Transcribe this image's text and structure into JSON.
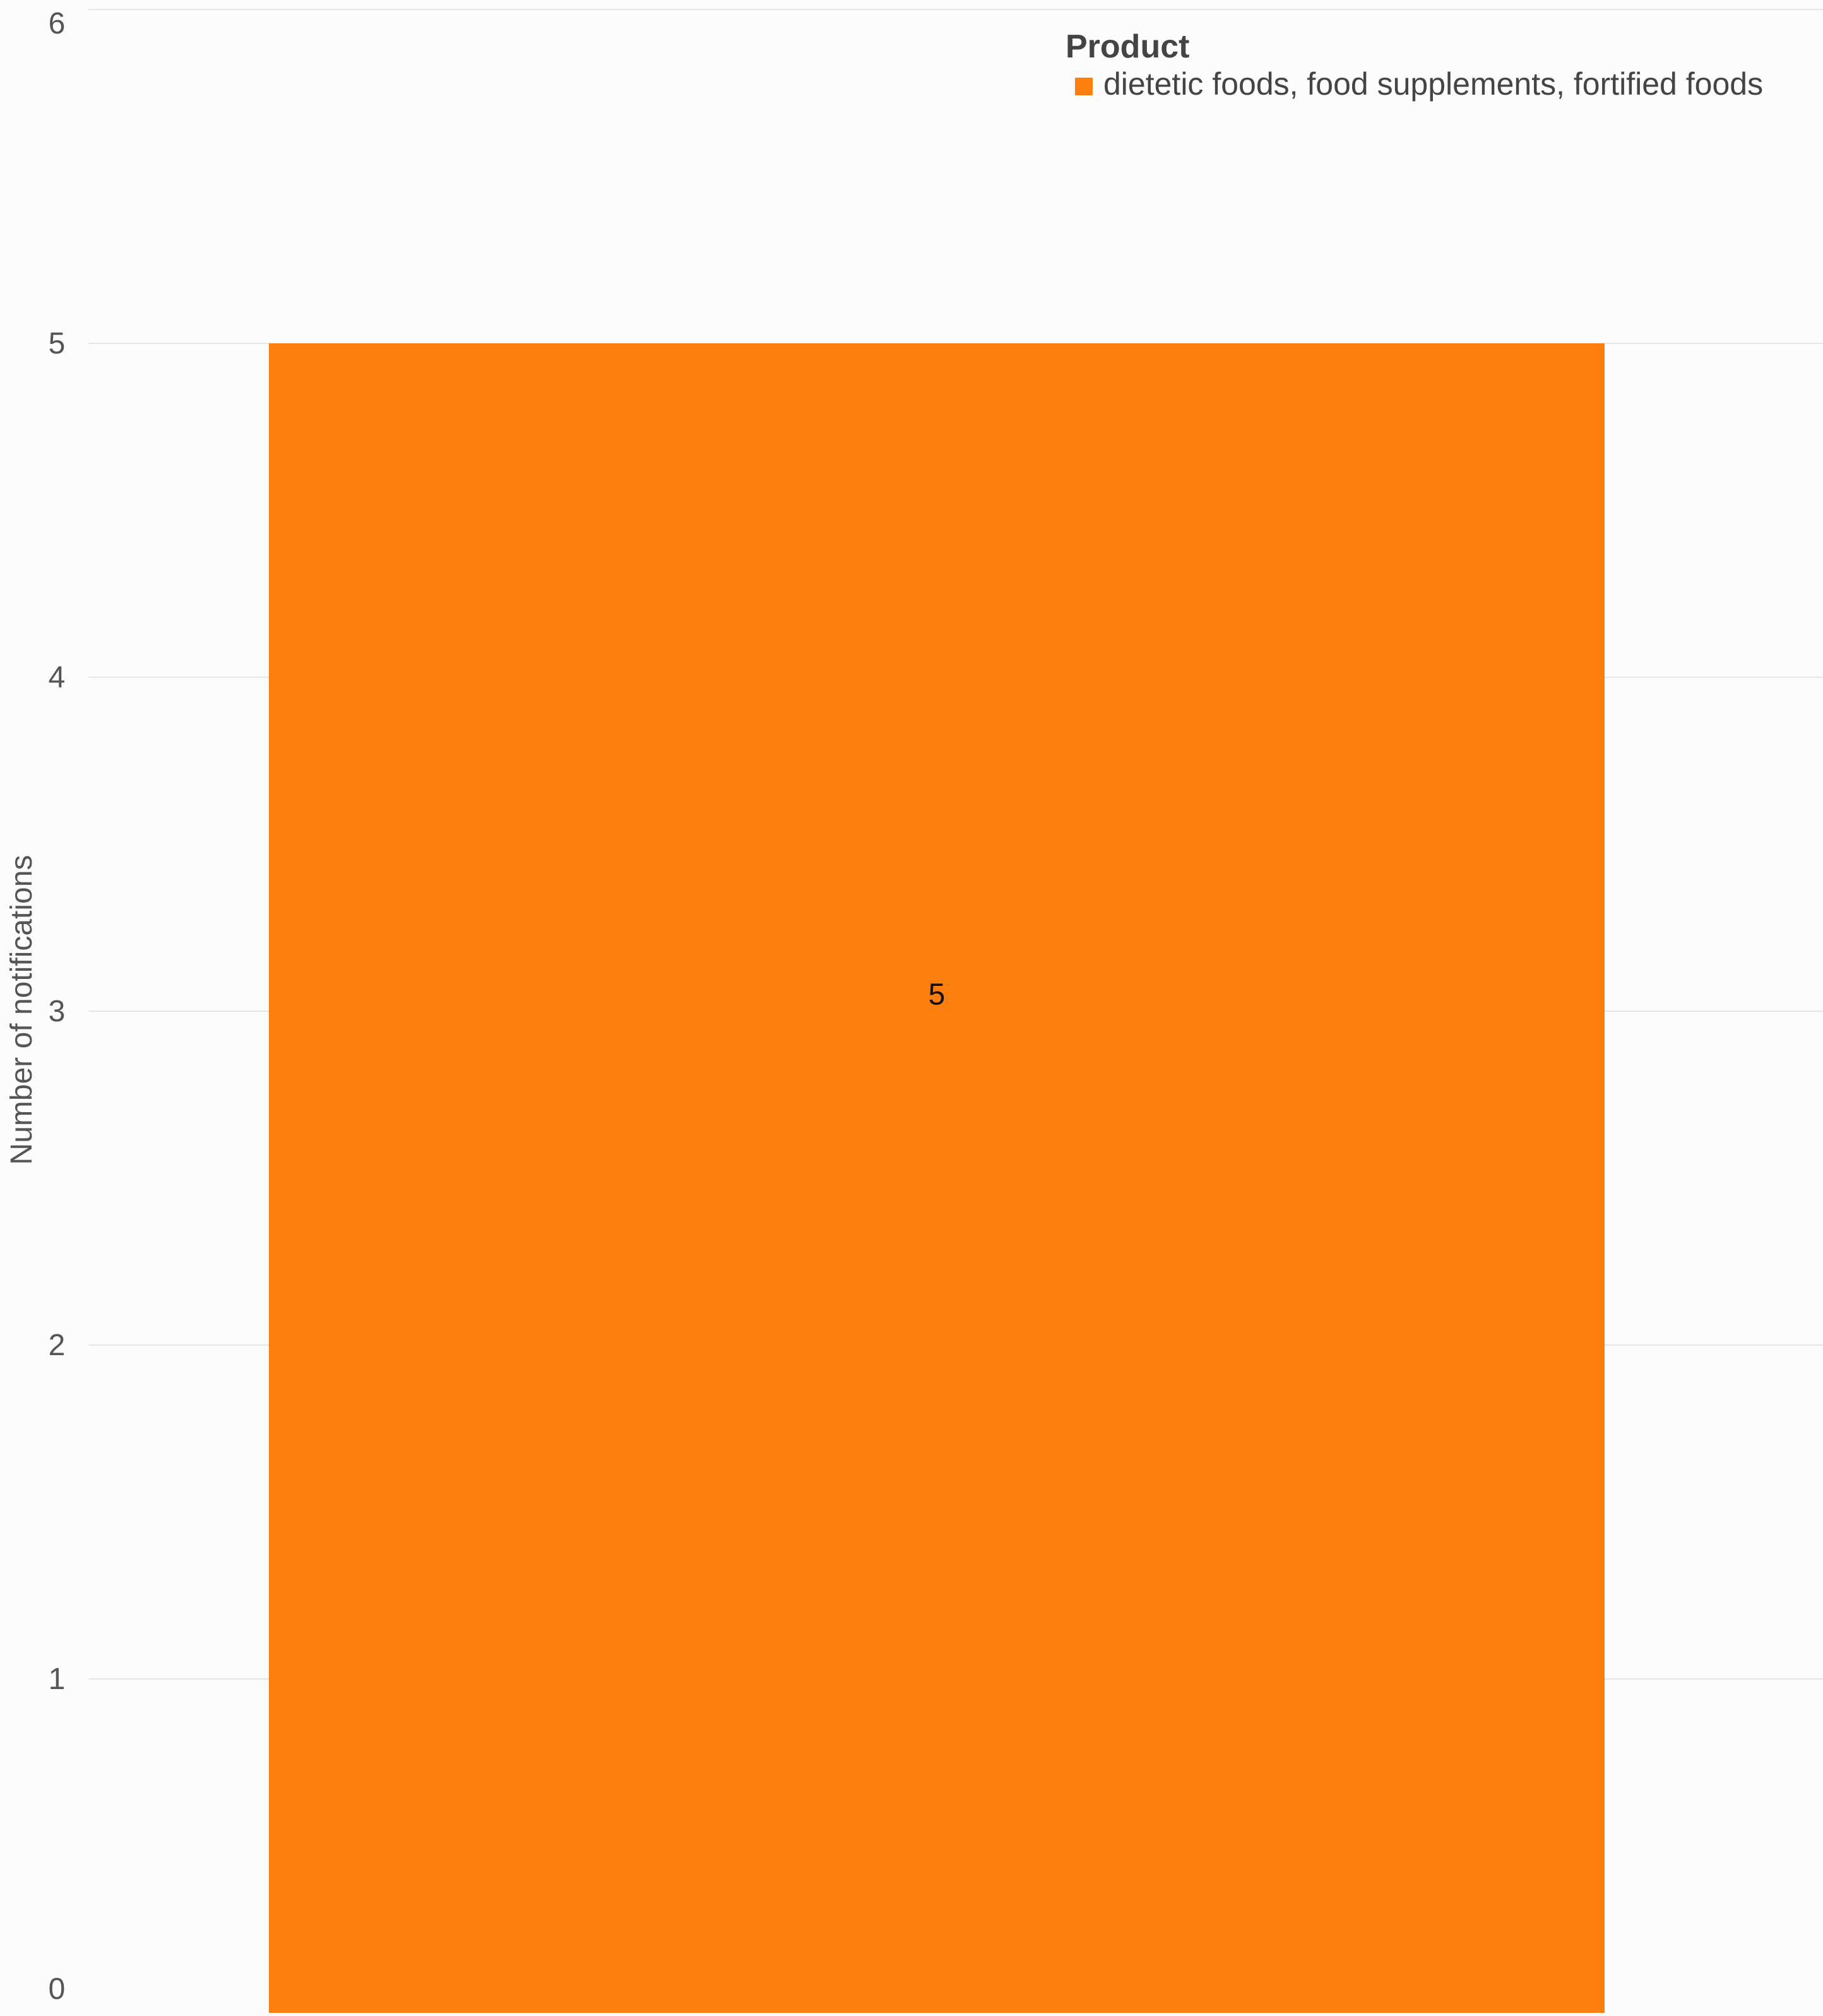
{
  "chart_data": {
    "type": "bar",
    "title": "",
    "xlabel": "",
    "ylabel": "Number of notifications",
    "ylim": [
      0,
      6
    ],
    "yticks": [
      0,
      1,
      2,
      3,
      4,
      5,
      6
    ],
    "grid": true,
    "legend": {
      "title": "Product",
      "placement": "top-right"
    },
    "categories": [
      ""
    ],
    "series": [
      {
        "name": "dietetic foods, food supplements, fortified foods",
        "values": [
          5
        ],
        "color": "#fc7f10"
      }
    ],
    "data_labels": [
      "5"
    ]
  }
}
